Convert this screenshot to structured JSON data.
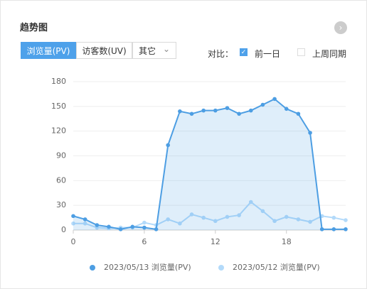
{
  "header": {
    "title": "趋势图"
  },
  "tabs": {
    "items": [
      "浏览量(PV)",
      "访客数(UV)",
      "其它"
    ],
    "active": 0
  },
  "compare": {
    "label": "对比：",
    "options": [
      {
        "label": "前一日",
        "checked": true
      },
      {
        "label": "上周同期",
        "checked": false
      }
    ]
  },
  "chart_data": {
    "type": "line",
    "x": [
      0,
      1,
      2,
      3,
      4,
      5,
      6,
      7,
      8,
      9,
      10,
      11,
      12,
      13,
      14,
      15,
      16,
      17,
      18,
      19,
      20,
      21,
      22,
      23
    ],
    "series": [
      {
        "name": "2023/05/13 浏览量(PV)",
        "color": "#4d9ee3",
        "values": [
          17,
          13,
          6,
          4,
          1,
          4,
          3,
          1,
          103,
          144,
          141,
          145,
          145,
          148,
          141,
          145,
          152,
          159,
          147,
          141,
          118,
          1,
          1,
          1
        ]
      },
      {
        "name": "2023/05/12 浏览量(PV)",
        "color": "#b3dafa",
        "values": [
          8,
          8,
          3,
          2,
          3,
          3,
          9,
          6,
          13,
          8,
          19,
          15,
          11,
          16,
          18,
          34,
          23,
          11,
          16,
          13,
          10,
          17,
          15,
          12
        ]
      }
    ],
    "xlim": [
      0,
      23
    ],
    "ylim": [
      0,
      180
    ],
    "xticks": [
      0,
      6,
      12,
      18
    ],
    "yticks": [
      0,
      30,
      60,
      90,
      120,
      150,
      180
    ],
    "grid": true
  }
}
